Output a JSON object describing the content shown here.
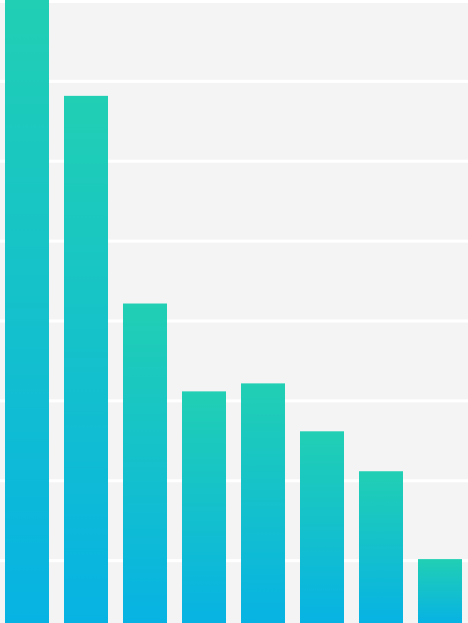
{
  "chart_data": {
    "type": "bar",
    "categories": [
      null,
      null,
      null,
      null,
      null,
      null,
      null,
      null
    ],
    "values": [
      7.8,
      6.6,
      4.0,
      2.9,
      3.0,
      2.4,
      1.9,
      0.8
    ],
    "color": "#21cfb4",
    "gradient_end": "#07b3e3",
    "ylim": [
      0,
      7.8
    ],
    "yticks": [
      0.8,
      1.8,
      2.8,
      3.8,
      4.8,
      5.8,
      6.8,
      7.8
    ],
    "grid": true
  }
}
